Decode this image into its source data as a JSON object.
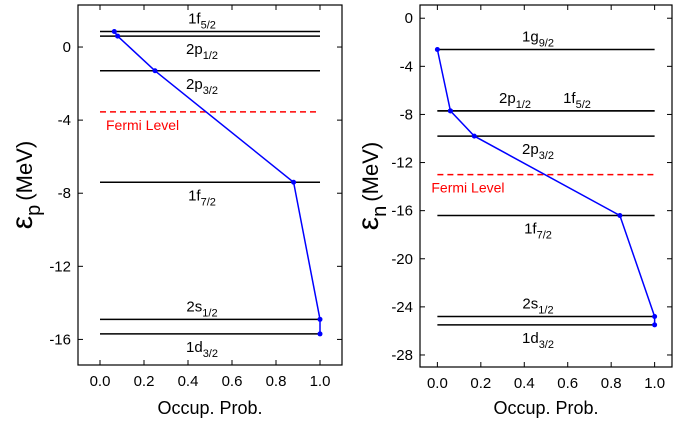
{
  "chart_data": [
    {
      "type": "line",
      "x_label": "Occup. Prob.",
      "y_label": {
        "symbol": "ε",
        "subscript": "p",
        "unit": "(MeV)"
      },
      "xlim": [
        -0.1,
        1.1
      ],
      "xticks": [
        {
          "value": 0,
          "label": "0.0"
        },
        {
          "value": 0.2,
          "label": "0.2"
        },
        {
          "value": 0.4,
          "label": "0.4"
        },
        {
          "value": 0.6,
          "label": "0.6"
        },
        {
          "value": 0.8,
          "label": "0.8"
        },
        {
          "value": 1,
          "label": "1.0"
        }
      ],
      "ylim": [
        -17.4,
        2.3
      ],
      "yticks": [
        0,
        -4,
        -8,
        -12,
        -16
      ],
      "level_color": "#000000",
      "line_color": "#0000ff",
      "levels": [
        {
          "label": "1f",
          "subscript": "5/2",
          "energy": 0.85,
          "occupancy": 0.065,
          "label_position": "above"
        },
        {
          "label": "2p",
          "subscript": "1/2",
          "energy": 0.6,
          "occupancy": 0.08,
          "label_position": "below"
        },
        {
          "label": "2p",
          "subscript": "3/2",
          "energy": -1.3,
          "occupancy": 0.25,
          "label_position": "below"
        },
        {
          "label": "1f",
          "subscript": "7/2",
          "energy": -7.4,
          "occupancy": 0.88,
          "label_position": "below"
        },
        {
          "label": "2s",
          "subscript": "1/2",
          "energy": -14.9,
          "occupancy": 1.0,
          "label_position": "above"
        },
        {
          "label": "1d",
          "subscript": "3/2",
          "energy": -15.7,
          "occupancy": 1.0,
          "label_position": "below"
        }
      ],
      "fermi": {
        "label": "Fermi Level",
        "value": -3.55,
        "color": "#ff0000"
      }
    },
    {
      "type": "line",
      "x_label": "Occup. Prob.",
      "y_label": {
        "symbol": "ε",
        "subscript": "n",
        "unit": "(MeV)"
      },
      "xlim": [
        -0.08,
        1.08
      ],
      "xticks": [
        {
          "value": 0,
          "label": "0.0"
        },
        {
          "value": 0.2,
          "label": "0.2"
        },
        {
          "value": 0.4,
          "label": "0.4"
        },
        {
          "value": 0.6,
          "label": "0.6"
        },
        {
          "value": 0.8,
          "label": "0.8"
        },
        {
          "value": 1,
          "label": "1.0"
        }
      ],
      "ylim": [
        -29.0,
        1.1
      ],
      "yticks": [
        0,
        -4,
        -8,
        -12,
        -16,
        -20,
        -24,
        -28
      ],
      "level_color": "#000000",
      "line_color": "#0000ff",
      "levels": [
        {
          "label": "1g",
          "subscript": "9/2",
          "energy": -2.6,
          "occupancy": 0.0,
          "label_position": "above"
        },
        {
          "label": "2p",
          "subscript": "1/2",
          "energy": -7.7,
          "occupancy": 0.06,
          "label_position": "above"
        },
        {
          "label": "1f",
          "subscript": "5/2",
          "energy": -7.7,
          "occupancy": 0.06,
          "label_position": "above"
        },
        {
          "label": "2p",
          "subscript": "3/2",
          "energy": -9.8,
          "occupancy": 0.17,
          "label_position": "below"
        },
        {
          "label": "1f",
          "subscript": "7/2",
          "energy": -16.4,
          "occupancy": 0.84,
          "label_position": "below"
        },
        {
          "label": "2s",
          "subscript": "1/2",
          "energy": -24.8,
          "occupancy": 1.0,
          "label_position": "above"
        },
        {
          "label": "1d",
          "subscript": "3/2",
          "energy": -25.5,
          "occupancy": 1.0,
          "label_position": "below"
        }
      ],
      "fermi": {
        "label": "Fermi Level",
        "value": -13.0,
        "color": "#ff0000"
      }
    }
  ]
}
